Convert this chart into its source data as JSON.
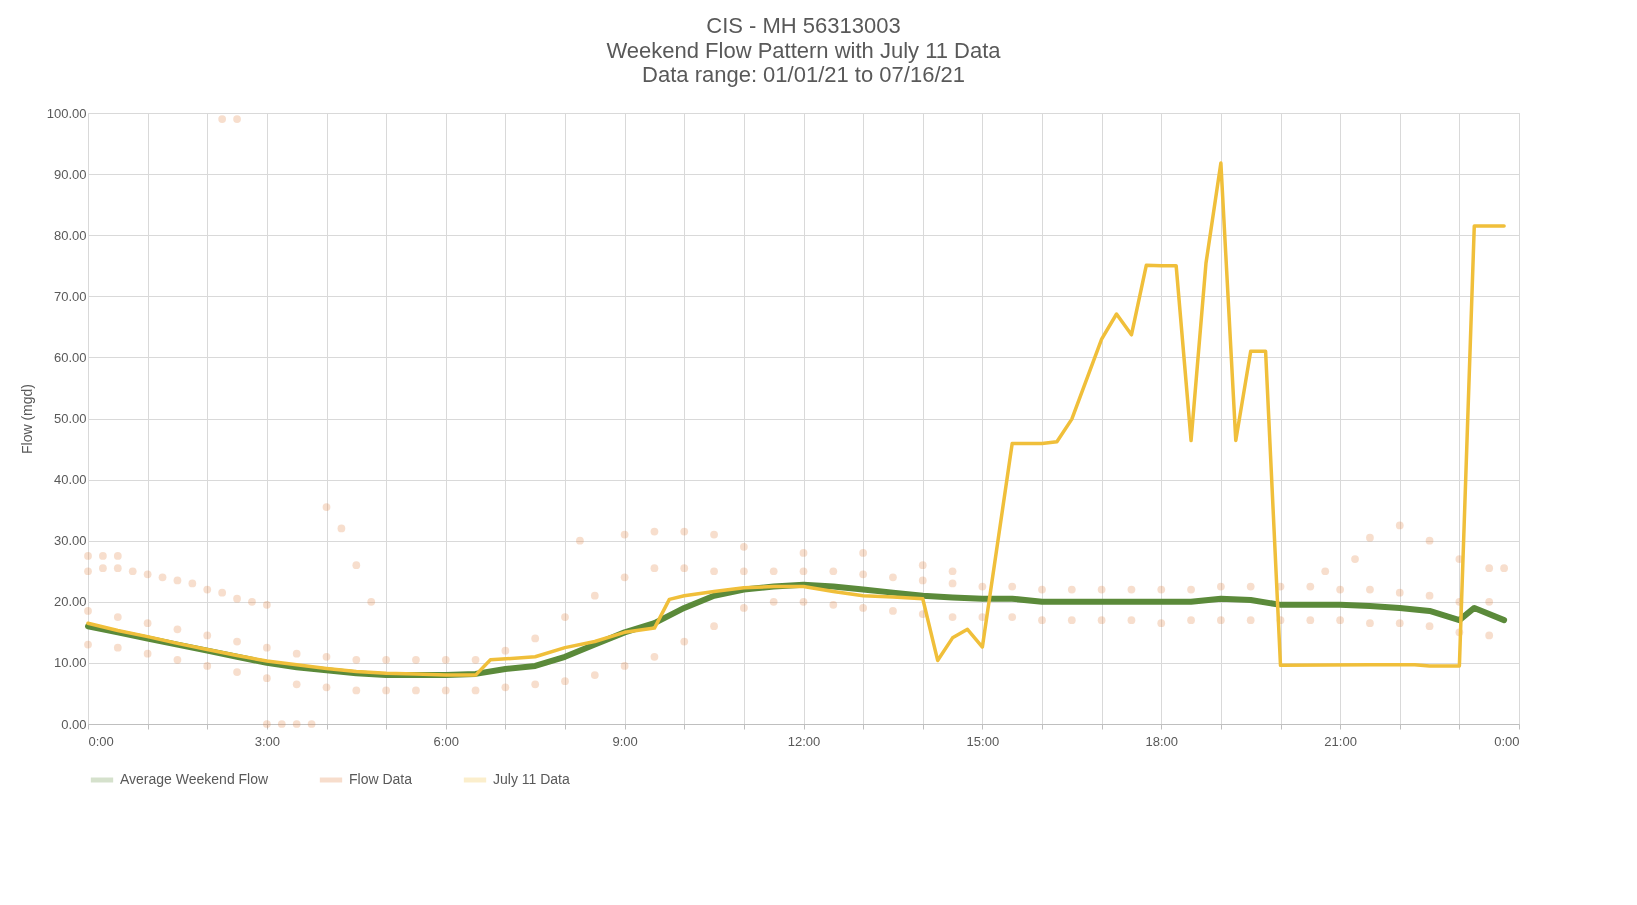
{
  "chart_data": {
    "type": "line",
    "title": "CIS - MH 56313003",
    "subtitle": "Weekend Flow Pattern with July 11 Data\nData range: 01/01/21 to 07/16/21",
    "ylabel": "Flow (mgd)",
    "xlim": [
      0,
      24
    ],
    "xticks": [
      {
        "value": 0,
        "label": "0:00"
      },
      {
        "value": 1,
        "label": null
      },
      {
        "value": 2,
        "label": null
      },
      {
        "value": 3,
        "label": "3:00"
      },
      {
        "value": 4,
        "label": null
      },
      {
        "value": 5,
        "label": null
      },
      {
        "value": 6,
        "label": "6:00"
      },
      {
        "value": 7,
        "label": null
      },
      {
        "value": 8,
        "label": null
      },
      {
        "value": 9,
        "label": "9:00"
      },
      {
        "value": 10,
        "label": null
      },
      {
        "value": 11,
        "label": null
      },
      {
        "value": 12,
        "label": "12:00"
      },
      {
        "value": 13,
        "label": null
      },
      {
        "value": 14,
        "label": null
      },
      {
        "value": 15,
        "label": "15:00"
      },
      {
        "value": 16,
        "label": null
      },
      {
        "value": 17,
        "label": null
      },
      {
        "value": 18,
        "label": "18:00"
      },
      {
        "value": 19,
        "label": null
      },
      {
        "value": 20,
        "label": null
      },
      {
        "value": 21,
        "label": "21:00"
      },
      {
        "value": 22,
        "label": null
      },
      {
        "value": 23,
        "label": null
      },
      {
        "value": 24,
        "label": "0:00"
      }
    ],
    "ylim": [
      0,
      100
    ],
    "yticks": [
      {
        "value": 0,
        "label": "0.00"
      },
      {
        "value": 10,
        "label": "10.00"
      },
      {
        "value": 20,
        "label": "20.00"
      },
      {
        "value": 30,
        "label": "30.00"
      },
      {
        "value": 40,
        "label": "40.00"
      },
      {
        "value": 50,
        "label": "50.00"
      },
      {
        "value": 60,
        "label": "60.00"
      },
      {
        "value": 70,
        "label": "70.00"
      },
      {
        "value": 80,
        "label": "80.00"
      },
      {
        "value": 90,
        "label": "90.00"
      },
      {
        "value": 100,
        "label": "100.00"
      }
    ],
    "grid": true,
    "legend": "bottom",
    "series": [
      {
        "name": "Average Weekend Flow",
        "color": "#5b8a3a",
        "line_style": "solid",
        "marker": "none",
        "x": [
          0,
          0.5,
          1,
          1.5,
          2,
          2.5,
          3,
          3.5,
          4,
          4.5,
          5,
          5.5,
          6,
          6.5,
          7,
          7.5,
          8,
          8.5,
          9,
          9.5,
          10,
          10.5,
          11,
          11.5,
          12,
          12.5,
          13,
          13.5,
          14,
          14.5,
          15,
          15.5,
          16,
          16.5,
          17,
          17.5,
          18,
          18.5,
          19,
          19.5,
          20,
          20.5,
          21,
          21.5,
          22,
          22.5,
          23,
          23.25,
          23.75
        ],
        "values": [
          16,
          15,
          14,
          13,
          12,
          11,
          10,
          9.3,
          8.8,
          8.3,
          8,
          8,
          8,
          8.2,
          9,
          9.5,
          11,
          13,
          15,
          16.5,
          19,
          21,
          22,
          22.5,
          22.8,
          22.5,
          22,
          21.5,
          21,
          20.7,
          20.5,
          20.5,
          20,
          20,
          20,
          20,
          20,
          20,
          20.5,
          20.3,
          19.5,
          19.5,
          19.5,
          19.3,
          19,
          18.5,
          17,
          19,
          17
        ]
      },
      {
        "name": "Flow Data",
        "type": "scatter",
        "color": "#e07b39",
        "marker": "circle",
        "x": [
          0,
          0,
          0.5,
          0.5,
          1,
          1,
          1.5,
          1.5,
          2,
          2,
          2.5,
          2.5,
          3,
          3,
          3.5,
          3.5,
          4,
          4,
          4.5,
          4.5,
          5,
          5,
          5.5,
          5.5,
          6,
          6,
          6.5,
          6.5,
          7,
          7,
          7.5,
          7.5,
          8,
          8,
          8.5,
          8.5,
          9,
          9,
          9.5,
          9.5,
          10,
          10,
          10.5,
          10.5,
          11,
          11,
          11.5,
          11.5,
          12,
          12,
          12.5,
          12.5,
          13,
          13,
          13.5,
          13.5,
          14,
          14,
          14.5,
          14.5,
          15,
          15,
          15.5,
          15.5,
          16,
          16,
          16.5,
          16.5,
          17,
          17,
          17.5,
          17.5,
          18,
          18,
          18.5,
          18.5,
          19,
          19,
          19.5,
          19.5,
          20,
          20,
          20.5,
          20.5,
          21,
          21,
          21.5,
          21.5,
          22,
          22,
          22.5,
          22.5,
          23,
          23,
          23.5,
          23.5,
          0,
          0.25,
          0.5,
          0,
          0.25,
          0.5,
          0.75,
          1,
          1.25,
          1.5,
          1.75,
          2,
          2.25,
          2.5,
          2.75,
          3,
          2.25,
          2.5,
          4,
          4.25,
          4.5,
          4.75,
          3,
          3.25,
          3.5,
          3.75,
          8.25,
          9,
          9.5,
          10,
          10.5,
          11,
          12,
          13,
          14,
          14.5,
          20.75,
          21.25,
          21.5,
          22,
          22.5,
          23,
          23.5,
          23.75
        ],
        "values": [
          13,
          18.5,
          12.5,
          17.5,
          11.5,
          16.5,
          10.5,
          15.5,
          9.5,
          14.5,
          8.5,
          13.5,
          7.5,
          12.5,
          6.5,
          11.5,
          6,
          11,
          5.5,
          10.5,
          5.5,
          10.5,
          5.5,
          10.5,
          5.5,
          10.5,
          5.5,
          10.5,
          6,
          12,
          6.5,
          14,
          7,
          17.5,
          8,
          21,
          9.5,
          24,
          11,
          25.5,
          13.5,
          25.5,
          16,
          25,
          19,
          25,
          20,
          25,
          20,
          25,
          19.5,
          25,
          19,
          24.5,
          18.5,
          24,
          18,
          23.5,
          17.5,
          23,
          17.5,
          22.5,
          17.5,
          22.5,
          17,
          22,
          17,
          22,
          17,
          22,
          17,
          22,
          16.5,
          22,
          17,
          22,
          17,
          22.5,
          17,
          22.5,
          17,
          22.5,
          17,
          22.5,
          17,
          22,
          16.5,
          22,
          16.5,
          21.5,
          16,
          21,
          15,
          20,
          14.5,
          20,
          27.5,
          27.5,
          27.5,
          25,
          25.5,
          25.5,
          25,
          24.5,
          24,
          23.5,
          23,
          22,
          21.5,
          20.5,
          20,
          19.5,
          99,
          99,
          35.5,
          32,
          26,
          20,
          0,
          0,
          0,
          0,
          30,
          31,
          31.5,
          31.5,
          31,
          29,
          28,
          28,
          26,
          25,
          25,
          27,
          30.5,
          32.5,
          30,
          27,
          25.5,
          25.5
        ]
      },
      {
        "name": "July 11 Data",
        "color": "#f0bf3a",
        "line_style": "solid",
        "marker": "none",
        "x": [
          0,
          0.5,
          1,
          1.5,
          2,
          2.5,
          3,
          3.5,
          4,
          4.5,
          5,
          5.5,
          6,
          6.5,
          6.75,
          7.5,
          8,
          8.5,
          9,
          9.5,
          9.75,
          10,
          10.5,
          11,
          11.5,
          12,
          12.5,
          13,
          13.5,
          14,
          14.25,
          14.5,
          14.75,
          15,
          15.5,
          16,
          16.25,
          16.5,
          17,
          17.25,
          17.5,
          17.75,
          18,
          18.25,
          18.5,
          18.75,
          19,
          19.25,
          19.5,
          19.75,
          20,
          21.5,
          22.25,
          22.5,
          23,
          23.25,
          23.75
        ],
        "values": [
          16.5,
          15.3,
          14.3,
          13.2,
          12.2,
          11.2,
          10.3,
          9.7,
          9.1,
          8.6,
          8.3,
          8.2,
          8,
          8,
          10.5,
          11,
          12.5,
          13.5,
          15,
          15.7,
          20.4,
          21,
          21.7,
          22.3,
          22.5,
          22.5,
          21.7,
          21,
          20.8,
          20.5,
          10.4,
          14.1,
          15.5,
          12.6,
          45.9,
          45.9,
          46.2,
          49.9,
          63,
          67.1,
          63.7,
          75.1,
          75,
          75,
          46.4,
          75.4,
          91.8,
          46.4,
          61,
          61,
          9.6,
          9.7,
          9.7,
          9.5,
          9.5,
          81.5,
          81.5
        ]
      }
    ]
  }
}
